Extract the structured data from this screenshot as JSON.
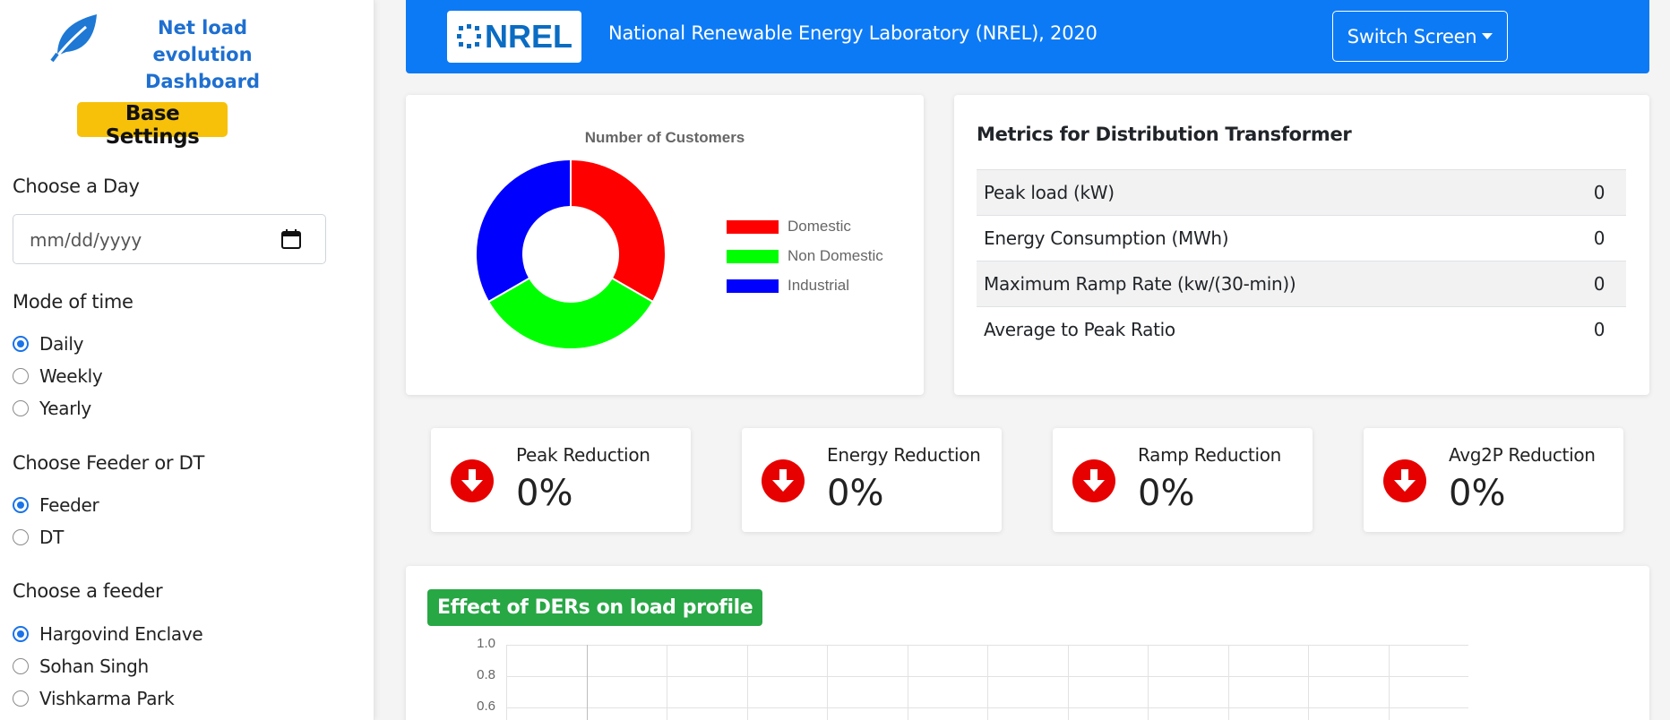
{
  "sidebar": {
    "title_line1": "Net load evolution",
    "title_line2": "Dashboard",
    "base_settings_label": "Base Settings",
    "day_label": "Choose a Day",
    "day_placeholder": "mm/dd/yyyy",
    "mode_label": "Mode of time",
    "modes": [
      {
        "label": "Daily",
        "checked": true
      },
      {
        "label": "Weekly",
        "checked": false
      },
      {
        "label": "Yearly",
        "checked": false
      }
    ],
    "feeder_dt_label": "Choose Feeder or DT",
    "feeder_dt_options": [
      {
        "label": "Feeder",
        "checked": true
      },
      {
        "label": "DT",
        "checked": false
      }
    ],
    "feeder_label": "Choose a feeder",
    "feeders": [
      {
        "label": "Hargovind Enclave",
        "checked": true
      },
      {
        "label": "Sohan Singh",
        "checked": false
      },
      {
        "label": "Vishkarma Park",
        "checked": false
      }
    ]
  },
  "header": {
    "logo_text": "NREL",
    "title": "National Renewable Energy Laboratory (NREL), 2020",
    "switch_label": "Switch Screen"
  },
  "chart_data": {
    "type": "pie",
    "title": "Number of Customers",
    "categories": [
      "Domestic",
      "Non Domestic",
      "Industrial"
    ],
    "values": [
      1,
      1,
      1
    ],
    "colors": [
      "#ff0000",
      "#00ff00",
      "#0000ff"
    ],
    "legend_position": "right"
  },
  "metrics": {
    "title": "Metrics for Distribution Transformer",
    "rows": [
      {
        "label": "Peak load (kW)",
        "value": "0"
      },
      {
        "label": "Energy Consumption (MWh)",
        "value": "0"
      },
      {
        "label": "Maximum Ramp Rate (kw/(30-min))",
        "value": "0"
      },
      {
        "label": "Average to Peak Ratio",
        "value": "0"
      }
    ]
  },
  "reductions": [
    {
      "label": "Peak Reduction",
      "value": "0%"
    },
    {
      "label": "Energy Reduction",
      "value": "0%"
    },
    {
      "label": "Ramp Reduction",
      "value": "0%"
    },
    {
      "label": "Avg2P Reduction",
      "value": "0%"
    }
  ],
  "effect": {
    "title": "Effect of DERs on load profile",
    "y_ticks": [
      "1.0",
      "0.8",
      "0.6"
    ]
  },
  "colors": {
    "header_blue": "#0d7af5",
    "accent_yellow": "#f7c10a",
    "badge_green": "#28a745",
    "down_red": "#e60000"
  }
}
